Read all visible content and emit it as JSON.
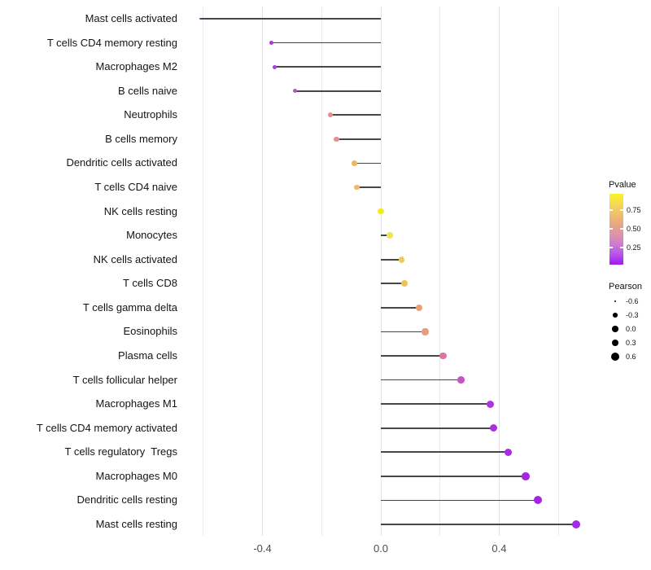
{
  "chart_data": {
    "type": "scatter",
    "subtype": "lollipop",
    "title": "",
    "xlabel": "",
    "ylabel": "",
    "xlim": [
      -0.66,
      0.72
    ],
    "grid": "vertical-only",
    "gridline_values": [
      -0.6,
      -0.4,
      -0.2,
      0.0,
      0.2,
      0.4,
      0.6
    ],
    "x_ticks": [
      {
        "label": "-0.4",
        "value": -0.4
      },
      {
        "label": "0.0",
        "value": 0.0
      },
      {
        "label": "0.4",
        "value": 0.4
      }
    ],
    "points": [
      {
        "label": "Mast cells activated",
        "pearson": -0.61,
        "color": "#8f2ad8"
      },
      {
        "label": "T cells CD4 memory resting",
        "pearson": -0.37,
        "color": "#a93ae0"
      },
      {
        "label": "Macrophages M2",
        "pearson": -0.36,
        "color": "#ab3ce1"
      },
      {
        "label": "B cells naive",
        "pearson": -0.29,
        "color": "#bb50d0"
      },
      {
        "label": "Neutrophils",
        "pearson": -0.17,
        "color": "#e28e8e"
      },
      {
        "label": "B cells memory",
        "pearson": -0.15,
        "color": "#e29390"
      },
      {
        "label": "Dendritic cells activated",
        "pearson": -0.09,
        "color": "#eeb85a"
      },
      {
        "label": "T cells CD4 naive",
        "pearson": -0.08,
        "color": "#eebb5e"
      },
      {
        "label": "NK cells resting",
        "pearson": 0.0,
        "color": "#f4eb1e"
      },
      {
        "label": "Monocytes",
        "pearson": 0.03,
        "color": "#f1e158"
      },
      {
        "label": "NK cells activated",
        "pearson": 0.07,
        "color": "#eeca62"
      },
      {
        "label": "T cells CD8",
        "pearson": 0.08,
        "color": "#eec25e"
      },
      {
        "label": "T cells gamma delta",
        "pearson": 0.13,
        "color": "#e9a076"
      },
      {
        "label": "Eosinophils",
        "pearson": 0.15,
        "color": "#e79d82"
      },
      {
        "label": "Plasma cells",
        "pearson": 0.21,
        "color": "#d877a3"
      },
      {
        "label": "T cells follicular helper",
        "pearson": 0.27,
        "color": "#c455bf"
      },
      {
        "label": "Macrophages M1",
        "pearson": 0.37,
        "color": "#ad35de"
      },
      {
        "label": "T cells CD4 memory activated",
        "pearson": 0.38,
        "color": "#aa30df"
      },
      {
        "label": "T cells regulatory  Tregs",
        "pearson": 0.43,
        "color": "#a82ce1"
      },
      {
        "label": "Macrophages M0",
        "pearson": 0.49,
        "color": "#a527e2"
      },
      {
        "label": "Dendritic cells resting",
        "pearson": 0.53,
        "color": "#a324e3"
      },
      {
        "label": "Mast cells resting",
        "pearson": 0.66,
        "color": "#a42ae6"
      }
    ],
    "legend_position": "right"
  },
  "legend_pvalue": {
    "title": "Pvalue",
    "tick_labels": [
      "0.75",
      "0.50",
      "0.25"
    ],
    "gradient_top_color": "#f8f521",
    "gradient_bottom_color": "#a318f2"
  },
  "legend_pearson": {
    "title": "Pearson",
    "entries": [
      {
        "label": "-0.6",
        "radius": 1.3
      },
      {
        "label": "-0.3",
        "radius": 2.8
      },
      {
        "label": "0.0",
        "radius": 3.7
      },
      {
        "label": "0.3",
        "radius": 4.4
      },
      {
        "label": "0.6",
        "radius": 5.1
      }
    ],
    "dot_color": "#000000"
  }
}
